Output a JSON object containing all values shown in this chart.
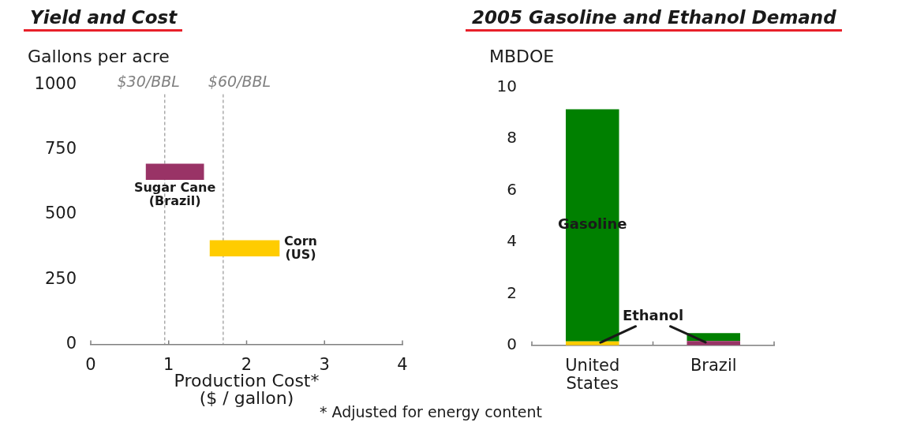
{
  "chart_data": [
    {
      "type": "bar",
      "orientation": "horizontal",
      "title": "Yield and Cost",
      "xlabel": "Production Cost*\n($ / gallon)",
      "ylabel": "Gallons per acre",
      "xlim": [
        0,
        4
      ],
      "xticks": [
        0,
        1,
        2,
        3,
        4
      ],
      "ylim": [
        0,
        1000
      ],
      "yticks": [
        0,
        250,
        500,
        750,
        1000
      ],
      "series": [
        {
          "name": "Sugar Cane\n(Brazil)",
          "color": "#993366",
          "x": [
            665
          ],
          "base": [
            0.71
          ],
          "values": [
            0.74
          ]
        },
        {
          "name": "Corn\n(US)",
          "color": "#ffcc00",
          "x": [
            370
          ],
          "base": [
            1.53
          ],
          "values": [
            0.89
          ]
        }
      ],
      "ref_lines": [
        {
          "axis": "x",
          "value": 0.95,
          "label": "$30/BBL",
          "color": "#808080",
          "line_style": "dashed"
        },
        {
          "axis": "x",
          "value": 1.7,
          "label": "$60/BBL",
          "color": "#808080",
          "line_style": "dashed"
        }
      ],
      "annotations": [
        "* Adjusted for energy content"
      ]
    },
    {
      "type": "bar",
      "stacked": true,
      "title": "2005 Gasoline and Ethanol Demand",
      "ylabel": "MBDOE",
      "categories": [
        "United\nStates",
        "Brazil"
      ],
      "ylim": [
        0,
        10
      ],
      "yticks": [
        0,
        2,
        4,
        6,
        8,
        10
      ],
      "series": [
        {
          "name": "Ethanol",
          "colors": [
            "#ffcc00",
            "#993366"
          ],
          "values": [
            0.15,
            0.17
          ]
        },
        {
          "name": "Gasoline",
          "color": "#008000",
          "values": [
            9,
            0.3
          ]
        }
      ]
    }
  ]
}
